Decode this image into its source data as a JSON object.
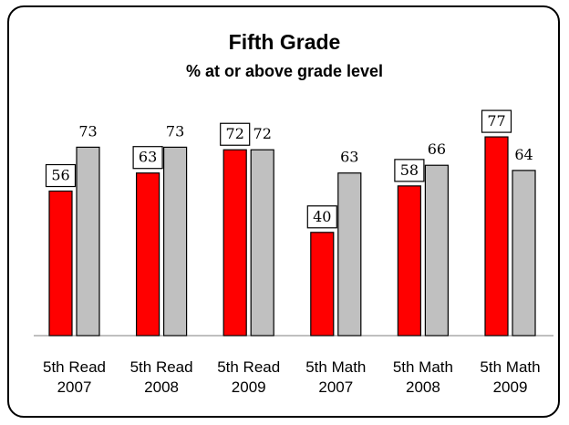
{
  "chart_data": {
    "type": "bar",
    "title": "Fifth Grade",
    "subtitle": "% at or above grade level",
    "categories": [
      [
        "5th Read",
        "2007"
      ],
      [
        "5th Read",
        "2008"
      ],
      [
        "5th Read",
        "2009"
      ],
      [
        "5th Math",
        "2007"
      ],
      [
        "5th Math",
        "2008"
      ],
      [
        "5th Math",
        "2009"
      ]
    ],
    "series": [
      {
        "values": [
          56,
          63,
          72,
          40,
          58,
          77
        ],
        "color": "#ff0000",
        "labels_boxed": true
      },
      {
        "values": [
          73,
          73,
          72,
          63,
          66,
          64
        ],
        "color": "#c0c0c0",
        "labels_boxed": false
      }
    ],
    "ylim": [
      0,
      85
    ],
    "grid": false,
    "legend": "none",
    "xlabel": "",
    "ylabel": ""
  }
}
